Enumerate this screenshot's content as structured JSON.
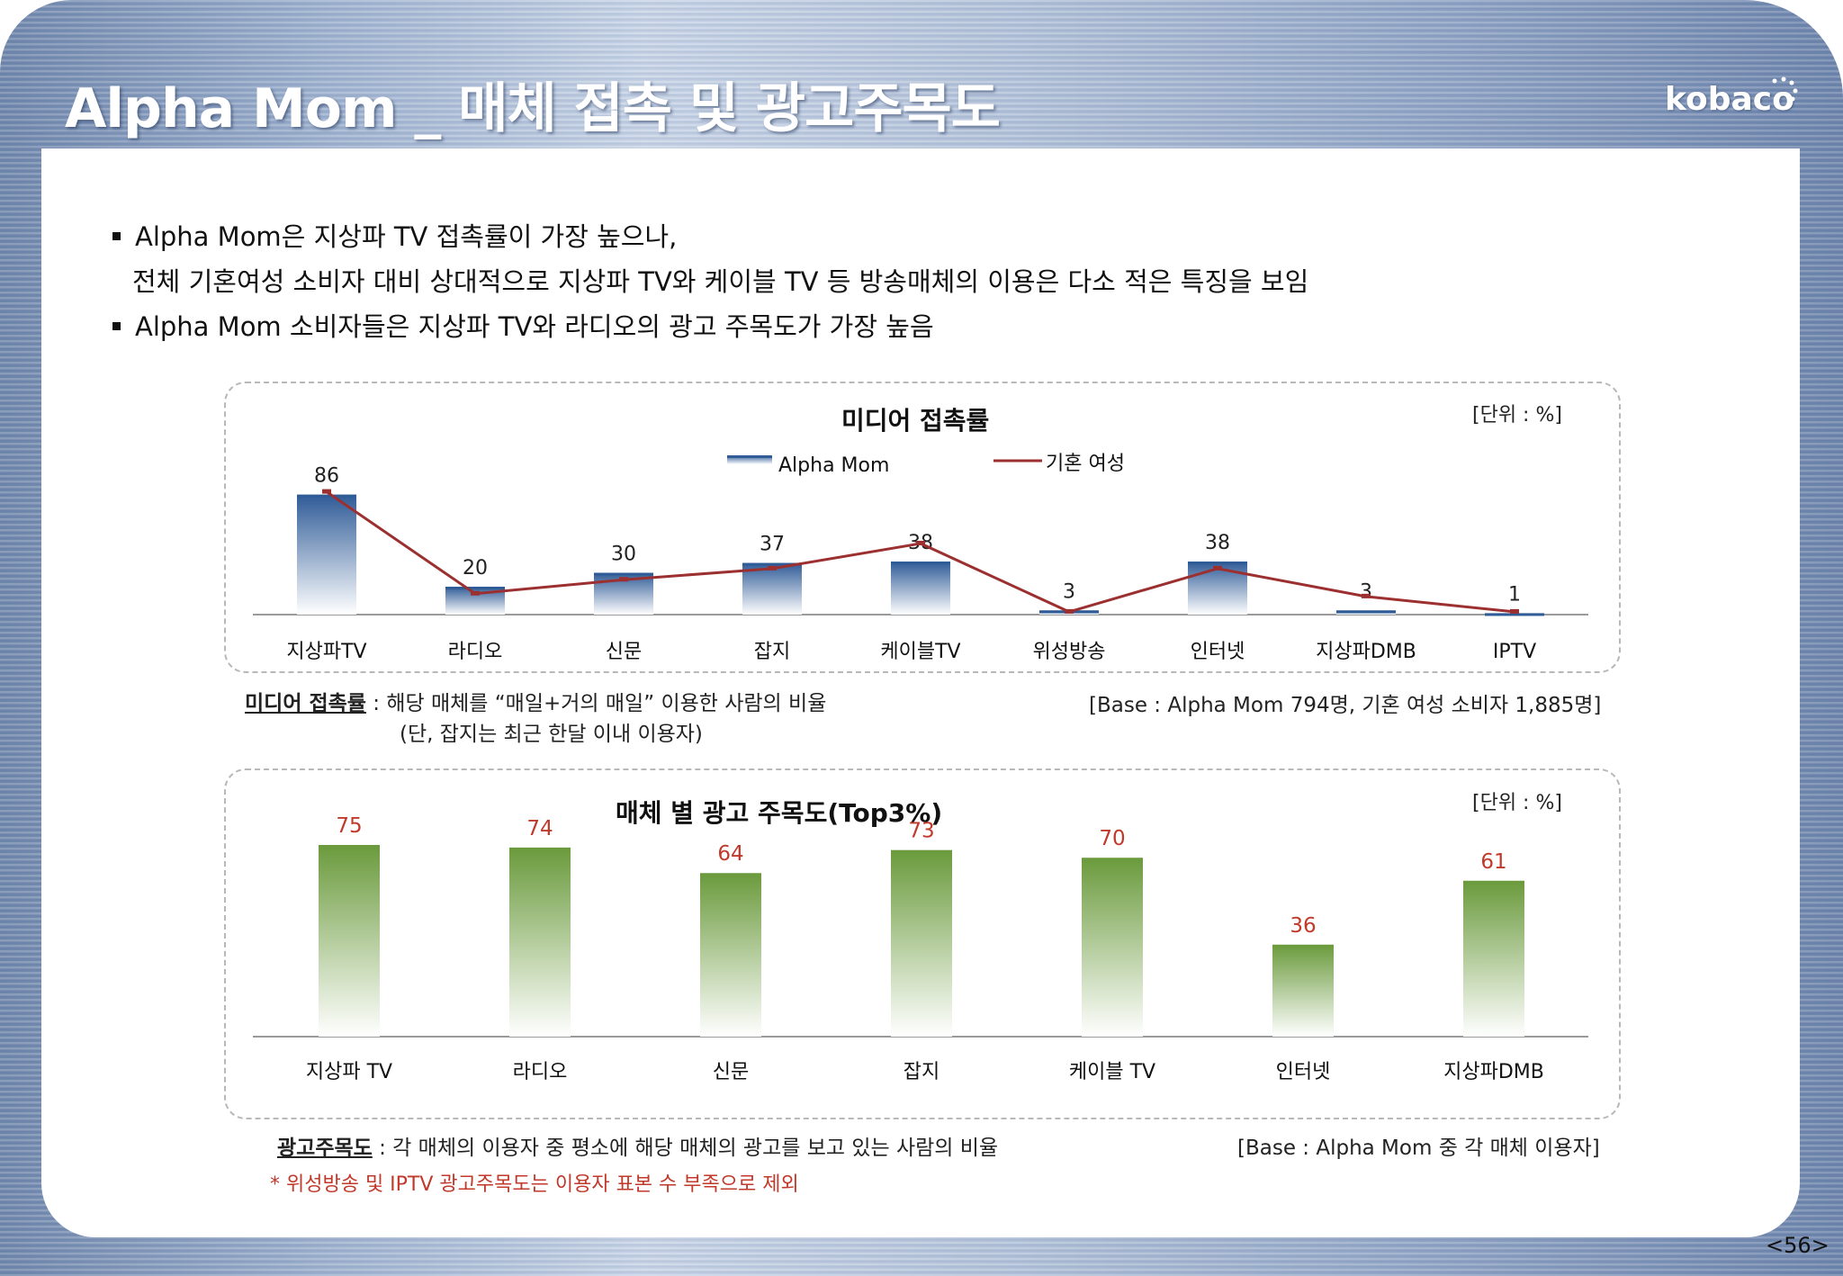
{
  "title": "Alpha Mom _ 매체 접촉 및 광고주목도",
  "logo": "kobaco",
  "bullets": {
    "b1": "Alpha Mom은 지상파 TV 접촉률이 가장 높으나,",
    "b1_cont": "전체 기혼여성 소비자 대비 상대적으로 지상파 TV와 케이블 TV 등 방송매체의 이용은 다소 적은 특징을 보임",
    "b2": "Alpha Mom 소비자들은 지상파 TV와 라디오의 광고 주목도가 가장 높음"
  },
  "panel1": {
    "title": "미디어 접촉률",
    "unit": "[단위 : %]"
  },
  "panel2": {
    "title": "매체 별 광고 주목도(Top3%)",
    "unit": "[단위 : %]"
  },
  "notes": {
    "n1_label": "미디어 접촉률",
    "n1_text": " : 해당 매체를 “매일+거의 매일” 이용한 사람의 비율",
    "n1_sub": "(단, 잡지는 최근 한달 이내 이용자)",
    "n1_base": "[Base : Alpha Mom 794명, 기혼 여성 소비자 1,885명]",
    "n2_label": "광고주목도",
    "n2_text": " : 각 매체의 이용자 중 평소에 해당 매체의 광고를 보고 있는 사람의 비율",
    "n2_base": "[Base : Alpha Mom 중 각 매체 이용자]",
    "n2_red": "* 위성방송 및 IPTV 광고주목도는 이용자 표본 수 부족으로 제외"
  },
  "page_number": "<56>",
  "colors": {
    "bar_blue": "#2f5b97",
    "line_red": "#9c2f2f",
    "bar_green": "#6a9a3c",
    "green_label": "#c0392b"
  },
  "chart_data": [
    {
      "type": "bar",
      "title": "미디어 접촉률",
      "categories": [
        "지상파TV",
        "라디오",
        "신문",
        "잡지",
        "케이블TV",
        "위성방송",
        "인터넷",
        "지상파DMB",
        "IPTV"
      ],
      "series": [
        {
          "name": "Alpha Mom",
          "type": "bar",
          "values": [
            86,
            20,
            30,
            37,
            38,
            3,
            38,
            3,
            1
          ]
        },
        {
          "name": "기혼 여성",
          "type": "line",
          "values": [
            88,
            15,
            25,
            33,
            51,
            2,
            33,
            13,
            2
          ]
        }
      ],
      "ylim": [
        0,
        100
      ],
      "legend": "top-center",
      "grid": false
    },
    {
      "type": "bar",
      "title": "매체 별 광고 주목도(Top3%)",
      "categories": [
        "지상파 TV",
        "라디오",
        "신문",
        "잡지",
        "케이블 TV",
        "인터넷",
        "지상파DMB"
      ],
      "values": [
        75,
        74,
        64,
        73,
        70,
        36,
        61
      ],
      "ylim": [
        0,
        100
      ],
      "grid": false
    }
  ]
}
